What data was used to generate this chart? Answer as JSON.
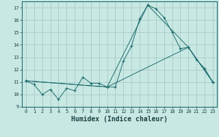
{
  "background_color": "#c8e8e4",
  "grid_color": "#a8c8c4",
  "line_color": "#1a6b6b",
  "marker_color": "#1a6b6b",
  "xlabel": "Humidex (Indice chaleur)",
  "xlabel_fontsize": 7,
  "xlim": [
    -0.5,
    23.5
  ],
  "ylim": [
    9,
    17.5
  ],
  "yticks": [
    9,
    10,
    11,
    12,
    13,
    14,
    15,
    16,
    17
  ],
  "xticks": [
    0,
    1,
    2,
    3,
    4,
    5,
    6,
    7,
    8,
    9,
    10,
    11,
    12,
    13,
    14,
    15,
    16,
    17,
    18,
    19,
    20,
    21,
    22,
    23
  ],
  "series1_x": [
    0,
    1,
    2,
    3,
    4,
    5,
    6,
    7,
    8,
    9,
    10,
    11,
    12,
    13,
    14,
    15,
    16,
    17,
    18,
    19,
    20,
    21,
    22,
    23
  ],
  "series1_y": [
    11.1,
    10.8,
    10.0,
    10.4,
    9.6,
    10.5,
    10.3,
    11.4,
    10.9,
    10.9,
    10.6,
    10.6,
    12.7,
    13.9,
    16.1,
    17.2,
    16.9,
    16.2,
    15.0,
    13.7,
    13.8,
    12.8,
    12.1,
    11.0
  ],
  "series2_x": [
    0,
    10,
    15,
    20,
    23
  ],
  "series2_y": [
    11.1,
    10.6,
    17.2,
    13.8,
    11.0
  ],
  "series3_x": [
    0,
    10,
    20,
    23
  ],
  "series3_y": [
    11.1,
    10.6,
    13.8,
    11.0
  ],
  "figsize": [
    3.2,
    2.0
  ],
  "dpi": 100
}
